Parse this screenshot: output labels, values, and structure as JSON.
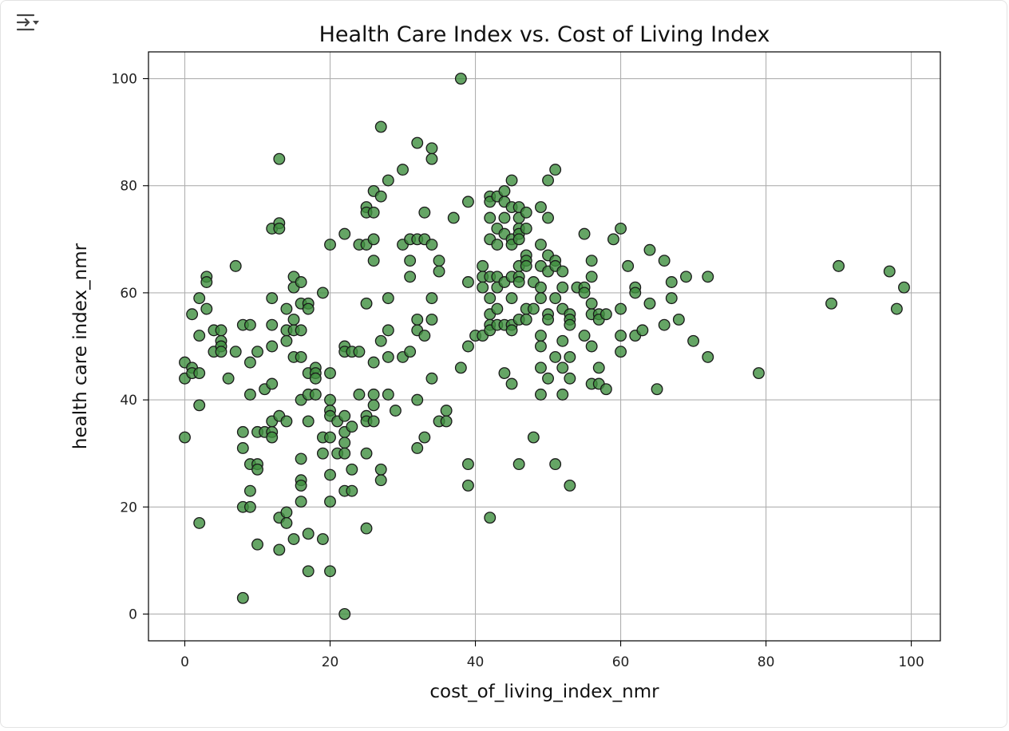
{
  "cell": {
    "output_toggle_icon": "output-toggle-icon"
  },
  "chart_data": {
    "type": "scatter",
    "title": "Health Care Index vs. Cost of Living Index",
    "xlabel": "cost_of_living_index_nmr",
    "ylabel": "health care index_nmr",
    "xlim": [
      -5,
      104
    ],
    "ylim": [
      -5,
      105
    ],
    "xticks": [
      0,
      20,
      40,
      60,
      80,
      100
    ],
    "yticks": [
      0,
      20,
      40,
      60,
      80,
      100
    ],
    "grid": true,
    "marker_color": "#3f8f3f",
    "marker_edge": "#1a1a1a",
    "points": [
      [
        0,
        47
      ],
      [
        0,
        44
      ],
      [
        0,
        33
      ],
      [
        1,
        56
      ],
      [
        1,
        46
      ],
      [
        1,
        45
      ],
      [
        2,
        59
      ],
      [
        2,
        52
      ],
      [
        2,
        45
      ],
      [
        2,
        39
      ],
      [
        2,
        17
      ],
      [
        3,
        63
      ],
      [
        3,
        62
      ],
      [
        3,
        57
      ],
      [
        4,
        53
      ],
      [
        4,
        49
      ],
      [
        5,
        53
      ],
      [
        5,
        51
      ],
      [
        5,
        50
      ],
      [
        5,
        49
      ],
      [
        6,
        44
      ],
      [
        7,
        65
      ],
      [
        7,
        49
      ],
      [
        8,
        54
      ],
      [
        8,
        34
      ],
      [
        8,
        31
      ],
      [
        8,
        20
      ],
      [
        8,
        3
      ],
      [
        9,
        54
      ],
      [
        9,
        47
      ],
      [
        9,
        41
      ],
      [
        9,
        28
      ],
      [
        9,
        23
      ],
      [
        9,
        20
      ],
      [
        10,
        49
      ],
      [
        10,
        34
      ],
      [
        10,
        28
      ],
      [
        10,
        27
      ],
      [
        10,
        13
      ],
      [
        11,
        42
      ],
      [
        11,
        34
      ],
      [
        12,
        72
      ],
      [
        12,
        59
      ],
      [
        12,
        54
      ],
      [
        12,
        50
      ],
      [
        12,
        43
      ],
      [
        12,
        36
      ],
      [
        12,
        34
      ],
      [
        12,
        33
      ],
      [
        13,
        85
      ],
      [
        13,
        73
      ],
      [
        13,
        72
      ],
      [
        13,
        37
      ],
      [
        13,
        18
      ],
      [
        13,
        12
      ],
      [
        14,
        57
      ],
      [
        14,
        53
      ],
      [
        14,
        51
      ],
      [
        14,
        36
      ],
      [
        14,
        19
      ],
      [
        14,
        17
      ],
      [
        15,
        63
      ],
      [
        15,
        61
      ],
      [
        15,
        55
      ],
      [
        15,
        53
      ],
      [
        15,
        48
      ],
      [
        15,
        14
      ],
      [
        16,
        62
      ],
      [
        16,
        58
      ],
      [
        16,
        53
      ],
      [
        16,
        48
      ],
      [
        16,
        40
      ],
      [
        16,
        29
      ],
      [
        16,
        25
      ],
      [
        16,
        24
      ],
      [
        16,
        21
      ],
      [
        17,
        58
      ],
      [
        17,
        57
      ],
      [
        17,
        45
      ],
      [
        17,
        41
      ],
      [
        17,
        36
      ],
      [
        17,
        15
      ],
      [
        17,
        8
      ],
      [
        18,
        46
      ],
      [
        18,
        45
      ],
      [
        18,
        44
      ],
      [
        18,
        41
      ],
      [
        19,
        60
      ],
      [
        19,
        33
      ],
      [
        19,
        30
      ],
      [
        19,
        14
      ],
      [
        20,
        69
      ],
      [
        20,
        45
      ],
      [
        20,
        40
      ],
      [
        20,
        38
      ],
      [
        20,
        37
      ],
      [
        20,
        33
      ],
      [
        20,
        26
      ],
      [
        20,
        21
      ],
      [
        20,
        8
      ],
      [
        21,
        36
      ],
      [
        21,
        30
      ],
      [
        22,
        71
      ],
      [
        22,
        50
      ],
      [
        22,
        49
      ],
      [
        22,
        37
      ],
      [
        22,
        34
      ],
      [
        22,
        32
      ],
      [
        22,
        30
      ],
      [
        22,
        23
      ],
      [
        22,
        0
      ],
      [
        23,
        49
      ],
      [
        23,
        35
      ],
      [
        23,
        27
      ],
      [
        23,
        23
      ],
      [
        24,
        69
      ],
      [
        24,
        49
      ],
      [
        24,
        41
      ],
      [
        25,
        76
      ],
      [
        25,
        75
      ],
      [
        25,
        69
      ],
      [
        25,
        58
      ],
      [
        25,
        37
      ],
      [
        25,
        36
      ],
      [
        25,
        30
      ],
      [
        25,
        16
      ],
      [
        26,
        79
      ],
      [
        26,
        75
      ],
      [
        26,
        70
      ],
      [
        26,
        66
      ],
      [
        26,
        47
      ],
      [
        26,
        41
      ],
      [
        26,
        39
      ],
      [
        26,
        36
      ],
      [
        27,
        91
      ],
      [
        27,
        78
      ],
      [
        27,
        51
      ],
      [
        27,
        27
      ],
      [
        27,
        25
      ],
      [
        28,
        81
      ],
      [
        28,
        59
      ],
      [
        28,
        53
      ],
      [
        28,
        48
      ],
      [
        28,
        41
      ],
      [
        29,
        38
      ],
      [
        30,
        83
      ],
      [
        30,
        69
      ],
      [
        30,
        48
      ],
      [
        31,
        70
      ],
      [
        31,
        66
      ],
      [
        31,
        63
      ],
      [
        31,
        49
      ],
      [
        32,
        88
      ],
      [
        32,
        70
      ],
      [
        32,
        55
      ],
      [
        32,
        53
      ],
      [
        32,
        40
      ],
      [
        32,
        31
      ],
      [
        33,
        75
      ],
      [
        33,
        70
      ],
      [
        33,
        52
      ],
      [
        33,
        33
      ],
      [
        34,
        87
      ],
      [
        34,
        85
      ],
      [
        34,
        69
      ],
      [
        34,
        59
      ],
      [
        34,
        55
      ],
      [
        34,
        44
      ],
      [
        35,
        66
      ],
      [
        35,
        64
      ],
      [
        35,
        36
      ],
      [
        36,
        38
      ],
      [
        36,
        36
      ],
      [
        37,
        74
      ],
      [
        38,
        100
      ],
      [
        38,
        46
      ],
      [
        39,
        77
      ],
      [
        39,
        62
      ],
      [
        39,
        50
      ],
      [
        39,
        28
      ],
      [
        39,
        24
      ],
      [
        40,
        52
      ],
      [
        41,
        65
      ],
      [
        41,
        63
      ],
      [
        41,
        61
      ],
      [
        41,
        52
      ],
      [
        42,
        78
      ],
      [
        42,
        77
      ],
      [
        42,
        74
      ],
      [
        42,
        70
      ],
      [
        42,
        63
      ],
      [
        42,
        59
      ],
      [
        42,
        56
      ],
      [
        42,
        54
      ],
      [
        42,
        53
      ],
      [
        42,
        18
      ],
      [
        43,
        78
      ],
      [
        43,
        72
      ],
      [
        43,
        69
      ],
      [
        43,
        63
      ],
      [
        43,
        61
      ],
      [
        43,
        57
      ],
      [
        43,
        54
      ],
      [
        44,
        79
      ],
      [
        44,
        77
      ],
      [
        44,
        74
      ],
      [
        44,
        71
      ],
      [
        44,
        62
      ],
      [
        44,
        54
      ],
      [
        44,
        45
      ],
      [
        45,
        81
      ],
      [
        45,
        76
      ],
      [
        45,
        70
      ],
      [
        45,
        69
      ],
      [
        45,
        63
      ],
      [
        45,
        59
      ],
      [
        45,
        54
      ],
      [
        45,
        53
      ],
      [
        45,
        43
      ],
      [
        46,
        76
      ],
      [
        46,
        74
      ],
      [
        46,
        72
      ],
      [
        46,
        71
      ],
      [
        46,
        70
      ],
      [
        46,
        65
      ],
      [
        46,
        63
      ],
      [
        46,
        62
      ],
      [
        46,
        55
      ],
      [
        46,
        28
      ],
      [
        47,
        75
      ],
      [
        47,
        72
      ],
      [
        47,
        67
      ],
      [
        47,
        66
      ],
      [
        47,
        65
      ],
      [
        47,
        57
      ],
      [
        47,
        55
      ],
      [
        48,
        62
      ],
      [
        48,
        57
      ],
      [
        48,
        33
      ],
      [
        49,
        76
      ],
      [
        49,
        69
      ],
      [
        49,
        65
      ],
      [
        49,
        61
      ],
      [
        49,
        59
      ],
      [
        49,
        52
      ],
      [
        49,
        50
      ],
      [
        49,
        46
      ],
      [
        49,
        41
      ],
      [
        50,
        81
      ],
      [
        50,
        74
      ],
      [
        50,
        67
      ],
      [
        50,
        64
      ],
      [
        50,
        56
      ],
      [
        50,
        55
      ],
      [
        50,
        44
      ],
      [
        51,
        83
      ],
      [
        51,
        66
      ],
      [
        51,
        65
      ],
      [
        51,
        59
      ],
      [
        51,
        48
      ],
      [
        51,
        28
      ],
      [
        52,
        64
      ],
      [
        52,
        61
      ],
      [
        52,
        57
      ],
      [
        52,
        51
      ],
      [
        52,
        46
      ],
      [
        52,
        41
      ],
      [
        53,
        56
      ],
      [
        53,
        55
      ],
      [
        53,
        54
      ],
      [
        53,
        48
      ],
      [
        53,
        44
      ],
      [
        53,
        24
      ],
      [
        54,
        61
      ],
      [
        55,
        71
      ],
      [
        55,
        61
      ],
      [
        55,
        60
      ],
      [
        55,
        52
      ],
      [
        56,
        66
      ],
      [
        56,
        63
      ],
      [
        56,
        58
      ],
      [
        56,
        56
      ],
      [
        56,
        50
      ],
      [
        56,
        43
      ],
      [
        57,
        56
      ],
      [
        57,
        55
      ],
      [
        57,
        46
      ],
      [
        57,
        43
      ],
      [
        58,
        56
      ],
      [
        58,
        42
      ],
      [
        59,
        70
      ],
      [
        60,
        72
      ],
      [
        60,
        57
      ],
      [
        60,
        52
      ],
      [
        60,
        49
      ],
      [
        61,
        65
      ],
      [
        62,
        61
      ],
      [
        62,
        60
      ],
      [
        62,
        52
      ],
      [
        63,
        53
      ],
      [
        64,
        68
      ],
      [
        64,
        58
      ],
      [
        65,
        42
      ],
      [
        66,
        66
      ],
      [
        66,
        54
      ],
      [
        67,
        62
      ],
      [
        67,
        59
      ],
      [
        68,
        55
      ],
      [
        69,
        63
      ],
      [
        70,
        51
      ],
      [
        72,
        63
      ],
      [
        72,
        48
      ],
      [
        79,
        45
      ],
      [
        89,
        58
      ],
      [
        90,
        65
      ],
      [
        97,
        64
      ],
      [
        98,
        57
      ],
      [
        99,
        61
      ]
    ]
  }
}
